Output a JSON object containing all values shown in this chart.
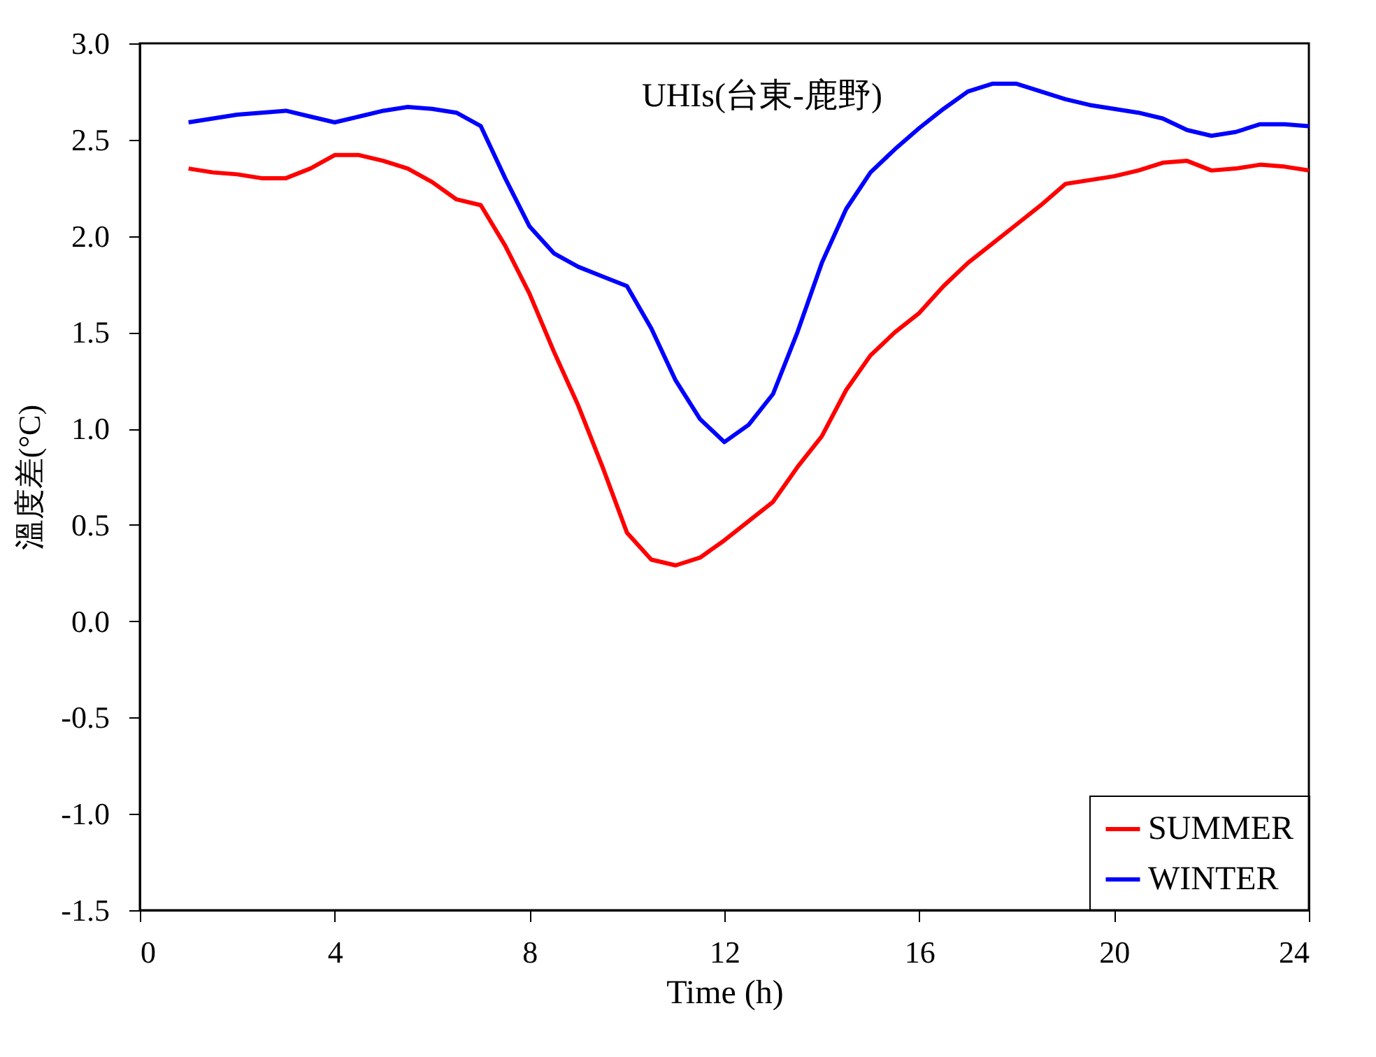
{
  "chart_data": {
    "type": "line",
    "title": "UHIs(台東-鹿野)",
    "xlabel": "Time (h)",
    "ylabel": "溫度差(°C)",
    "x": [
      1,
      1.5,
      2,
      2.5,
      3,
      3.5,
      4,
      4.5,
      5,
      5.5,
      6,
      6.5,
      7,
      7.5,
      8,
      8.5,
      9,
      9.5,
      10,
      10.5,
      11,
      11.5,
      12,
      12.5,
      13,
      13.5,
      14,
      14.5,
      15,
      15.5,
      16,
      16.5,
      17,
      17.5,
      18,
      18.5,
      19,
      19.5,
      20,
      20.5,
      21,
      21.5,
      22,
      22.5,
      23,
      23.5,
      24
    ],
    "series": [
      {
        "name": "SUMMER",
        "color": "#ff0000",
        "values": [
          2.35,
          2.33,
          2.32,
          2.3,
          2.3,
          2.35,
          2.42,
          2.42,
          2.39,
          2.35,
          2.28,
          2.19,
          2.16,
          1.95,
          1.7,
          1.4,
          1.12,
          0.8,
          0.46,
          0.32,
          0.29,
          0.33,
          0.42,
          0.52,
          0.62,
          0.8,
          0.96,
          1.2,
          1.38,
          1.5,
          1.6,
          1.74,
          1.86,
          1.96,
          2.06,
          2.16,
          2.27,
          2.29,
          2.31,
          2.34,
          2.38,
          2.39,
          2.34,
          2.35,
          2.37,
          2.36,
          2.34
        ]
      },
      {
        "name": "WINTER",
        "color": "#0000ff",
        "values": [
          2.59,
          2.61,
          2.63,
          2.64,
          2.65,
          2.62,
          2.59,
          2.62,
          2.65,
          2.67,
          2.66,
          2.64,
          2.57,
          2.3,
          2.05,
          1.91,
          1.84,
          1.79,
          1.74,
          1.52,
          1.25,
          1.05,
          0.93,
          1.02,
          1.18,
          1.5,
          1.86,
          2.14,
          2.33,
          2.45,
          2.56,
          2.66,
          2.75,
          2.79,
          2.79,
          2.75,
          2.71,
          2.68,
          2.66,
          2.64,
          2.61,
          2.55,
          2.52,
          2.54,
          2.58,
          2.58,
          2.57
        ]
      }
    ],
    "xlim": [
      0,
      24
    ],
    "xticks": [
      0,
      4,
      8,
      12,
      16,
      20,
      24
    ],
    "ylim": [
      -1.5,
      3.0
    ],
    "yticks": [
      {
        "value": -1.5,
        "label": "-1.5"
      },
      {
        "value": -1,
        "label": "-1.0"
      },
      {
        "value": -0.5,
        "label": "-0.5"
      },
      {
        "value": 0,
        "label": "0.0"
      },
      {
        "value": 0.5,
        "label": "0.5"
      },
      {
        "value": 1,
        "label": "1.0"
      },
      {
        "value": 1.5,
        "label": "1.5"
      },
      {
        "value": 2,
        "label": "2.0"
      },
      {
        "value": 2.5,
        "label": "2.5"
      },
      {
        "value": 3,
        "label": "3.0"
      }
    ],
    "grid": false,
    "legend": "bottom right",
    "marker": "none",
    "line_style": "solid"
  }
}
